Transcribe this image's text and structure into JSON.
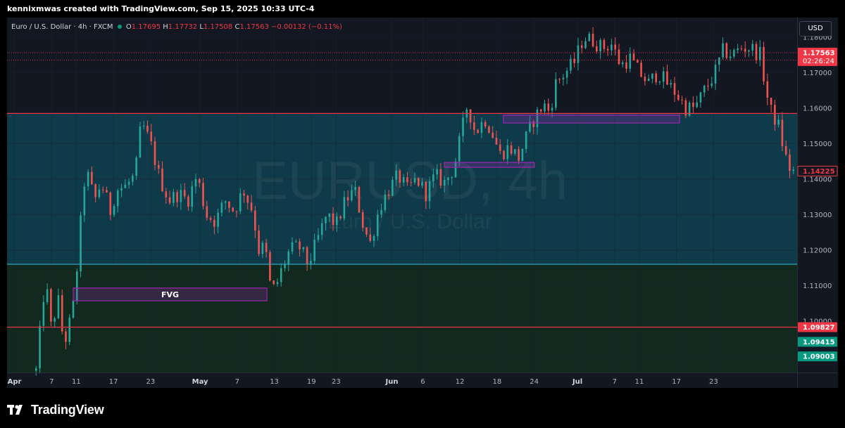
{
  "header": {
    "text": "kennixmwas created with TradingView.com, Sep 15, 2025 10:33 UTC-4"
  },
  "legend": {
    "symbol": "Euro / U.S. Dollar · 4h · FXCM",
    "o_label": "O",
    "o_value": "1.17695",
    "h_label": "H",
    "h_value": "1.17732",
    "l_label": "L",
    "l_value": "1.17508",
    "c_label": "C",
    "c_value": "1.17563",
    "change": "−0.00132 (−0.11%)"
  },
  "currency_button": "USD",
  "watermark": {
    "title": "EURUSD, 4h",
    "subtitle": "Euro / U.S. Dollar"
  },
  "colors": {
    "background": "#131722",
    "grid": "#1e222d",
    "up": "#26a69a",
    "down": "#ef5350",
    "zone_teal": "#0f3a4a",
    "zone_green": "#12291f",
    "level_red": "#f23645",
    "level_cyan": "#2fa6b8",
    "box": "#9c27b0"
  },
  "footer": {
    "brand": "TradingView",
    "logo_icon": "tradingview-logo-icon"
  },
  "chart_data": {
    "type": "candlestick",
    "symbol": "EURUSD",
    "interval": "4h",
    "ylim": [
      1.0855,
      1.1855
    ],
    "y_ticks": [
      "1.18000",
      "1.17000",
      "1.16000",
      "1.15000",
      "1.14000",
      "1.13000",
      "1.12000",
      "1.11000",
      "1.10000",
      "1.09000"
    ],
    "x_ticks": [
      {
        "label": "Apr",
        "day": 1,
        "bold": true
      },
      {
        "label": "7",
        "day": 7
      },
      {
        "label": "11",
        "day": 11
      },
      {
        "label": "17",
        "day": 17
      },
      {
        "label": "23",
        "day": 23
      },
      {
        "label": "May",
        "day": 31,
        "bold": true
      },
      {
        "label": "7",
        "day": 37
      },
      {
        "label": "13",
        "day": 43
      },
      {
        "label": "19",
        "day": 49
      },
      {
        "label": "23",
        "day": 53
      },
      {
        "label": "Jun",
        "day": 62,
        "bold": true
      },
      {
        "label": "6",
        "day": 67
      },
      {
        "label": "12",
        "day": 73
      },
      {
        "label": "18",
        "day": 79
      },
      {
        "label": "24",
        "day": 85
      },
      {
        "label": "Jul",
        "day": 92,
        "bold": true
      },
      {
        "label": "7",
        "day": 98
      },
      {
        "label": "11",
        "day": 102
      },
      {
        "label": "17",
        "day": 108
      },
      {
        "label": "23",
        "day": 114
      }
    ],
    "x_range_days": [
      -0.2,
      127.5
    ],
    "price_path": [
      [
        4.5,
        1.086
      ],
      [
        6.0,
        1.112
      ],
      [
        7.0,
        1.097
      ],
      [
        8.0,
        1.107
      ],
      [
        9.0,
        1.093
      ],
      [
        10.0,
        1.1
      ],
      [
        10.8,
        1.107
      ],
      [
        11.3,
        1.12
      ],
      [
        12.5,
        1.143
      ],
      [
        14,
        1.134
      ],
      [
        15,
        1.139
      ],
      [
        16.5,
        1.131
      ],
      [
        17.5,
        1.137
      ],
      [
        19,
        1.138
      ],
      [
        20.5,
        1.141
      ],
      [
        21.5,
        1.156
      ],
      [
        23,
        1.15
      ],
      [
        24.5,
        1.14
      ],
      [
        26,
        1.134
      ],
      [
        27.5,
        1.136
      ],
      [
        29,
        1.134
      ],
      [
        30.5,
        1.141
      ],
      [
        32,
        1.13
      ],
      [
        33.5,
        1.128
      ],
      [
        35,
        1.134
      ],
      [
        36.5,
        1.131
      ],
      [
        38,
        1.137
      ],
      [
        39.5,
        1.131
      ],
      [
        40.5,
        1.12
      ],
      [
        41.5,
        1.121
      ],
      [
        42.5,
        1.108
      ],
      [
        43.5,
        1.111
      ],
      [
        44.5,
        1.116
      ],
      [
        45.5,
        1.12
      ],
      [
        47,
        1.121
      ],
      [
        48.5,
        1.116
      ],
      [
        50,
        1.123
      ],
      [
        51.5,
        1.13
      ],
      [
        53,
        1.127
      ],
      [
        54.5,
        1.134
      ],
      [
        56,
        1.137
      ],
      [
        57.5,
        1.126
      ],
      [
        58.5,
        1.122
      ],
      [
        60,
        1.132
      ],
      [
        61.5,
        1.137
      ],
      [
        63,
        1.141
      ],
      [
        64.5,
        1.137
      ],
      [
        66,
        1.14
      ],
      [
        67.5,
        1.136
      ],
      [
        69,
        1.141
      ],
      [
        70.5,
        1.139
      ],
      [
        72,
        1.143
      ],
      [
        73,
        1.151
      ],
      [
        74.2,
        1.161
      ],
      [
        75.5,
        1.153
      ],
      [
        77,
        1.157
      ],
      [
        78,
        1.154
      ],
      [
        79.5,
        1.147
      ],
      [
        81,
        1.149
      ],
      [
        82.5,
        1.146
      ],
      [
        84,
        1.153
      ],
      [
        85,
        1.157
      ],
      [
        86.5,
        1.161
      ],
      [
        87.5,
        1.159
      ],
      [
        88.5,
        1.167
      ],
      [
        90,
        1.17
      ],
      [
        91.5,
        1.173
      ],
      [
        93,
        1.18
      ],
      [
        94.5,
        1.179
      ],
      [
        96,
        1.177
      ],
      [
        97.5,
        1.178
      ],
      [
        99,
        1.172
      ],
      [
        100.5,
        1.174
      ],
      [
        102,
        1.17
      ],
      [
        103.5,
        1.167
      ],
      [
        105,
        1.17
      ],
      [
        106.5,
        1.167
      ],
      [
        108,
        1.164
      ],
      [
        109.5,
        1.16
      ],
      [
        111,
        1.16
      ],
      [
        112.5,
        1.165
      ],
      [
        114,
        1.169
      ],
      [
        115.5,
        1.176
      ],
      [
        117,
        1.175
      ],
      [
        118.5,
        1.177
      ],
      [
        120,
        1.177
      ],
      [
        121.5,
        1.175
      ],
      [
        123,
        1.16
      ],
      [
        124.5,
        1.155
      ],
      [
        125.5,
        1.147
      ],
      [
        126.5,
        1.142
      ],
      [
        127.3,
        1.1422
      ]
    ],
    "levels": [
      {
        "name": "resistance-1.15850",
        "price": 1.1585,
        "color": "#f23645"
      },
      {
        "name": "support-1.11600",
        "price": 1.116,
        "color": "#2fa6b8"
      },
      {
        "name": "support-1.09827",
        "price": 1.09827,
        "color": "#f23645"
      },
      {
        "name": "dotted-1.17563",
        "price": 1.17563,
        "color": "#f23645",
        "dotted": true
      },
      {
        "name": "dotted-1.1735",
        "price": 1.1735,
        "color": "#f23645",
        "dotted": true
      }
    ],
    "zones": [
      {
        "name": "teal-zone",
        "from": 1.116,
        "to": 1.1585,
        "color": "#0f3a4a"
      },
      {
        "name": "green-zone",
        "from": 1.0855,
        "to": 1.116,
        "color": "#12291f"
      }
    ],
    "boxes": [
      {
        "name": "fvg-box",
        "day_from": 10.5,
        "day_to": 41.8,
        "from": 1.1057,
        "to": 1.1093,
        "label": "FVG"
      },
      {
        "name": "box-jun",
        "day_from": 70.5,
        "day_to": 85.0,
        "from": 1.1433,
        "to": 1.1447,
        "label": ""
      },
      {
        "name": "box-jun-jul",
        "day_from": 80.0,
        "day_to": 108.5,
        "from": 1.1558,
        "to": 1.158,
        "label": ""
      }
    ],
    "price_labels": [
      {
        "name": "last-price-tag",
        "price": 1.17563,
        "text": "1.17563",
        "sub": "02:26:24",
        "color": "#f23645",
        "text_color": "#ffffff"
      },
      {
        "name": "price-1.14225",
        "price": 1.14225,
        "text": "1.14225",
        "color": "#131722",
        "text_color": "#f23645",
        "border": "#f23645"
      },
      {
        "name": "price-1.09827",
        "price": 1.09827,
        "text": "1.09827",
        "color": "#f23645",
        "text_color": "#ffffff"
      },
      {
        "name": "price-1.09415",
        "price": 1.09415,
        "text": "1.09415",
        "color": "#089981",
        "text_color": "#ffffff"
      },
      {
        "name": "price-1.09003",
        "price": 1.09003,
        "text": "1.09003",
        "color": "#089981",
        "text_color": "#ffffff"
      }
    ]
  }
}
